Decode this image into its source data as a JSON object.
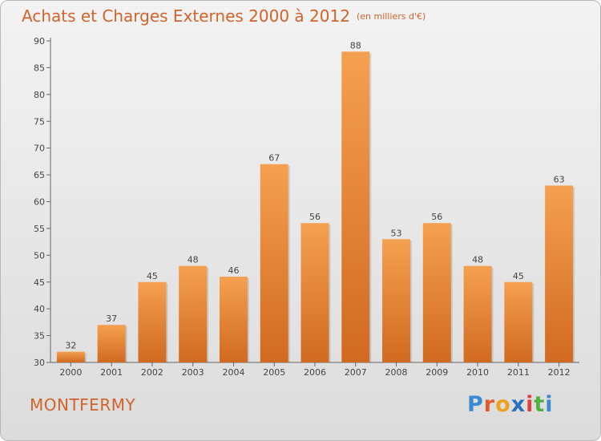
{
  "chart_data": {
    "type": "bar",
    "title": "Achats et Charges Externes 2000 à 2012",
    "subtitle": "(en milliers d'€)",
    "categories": [
      "2000",
      "2001",
      "2002",
      "2003",
      "2004",
      "2005",
      "2006",
      "2007",
      "2008",
      "2009",
      "2010",
      "2011",
      "2012"
    ],
    "values": [
      32,
      37,
      45,
      48,
      46,
      67,
      56,
      88,
      53,
      56,
      48,
      45,
      63
    ],
    "data_labels": [
      "32",
      "37",
      "45",
      "48",
      "46",
      "67",
      "56",
      "88",
      "53",
      "56",
      "48",
      "45",
      "63"
    ],
    "ylim": [
      30,
      90
    ],
    "yticks": [
      30,
      35,
      40,
      45,
      50,
      55,
      60,
      65,
      70,
      75,
      80,
      85,
      90
    ],
    "ytick_labels": [
      "30",
      "35",
      "40",
      "45",
      "50",
      "55",
      "60",
      "65",
      "70",
      "75",
      "80",
      "85",
      "90"
    ],
    "grid": false,
    "legend": "none",
    "bar_color_light": "#f5a050",
    "bar_color_dark": "#d06a20",
    "title_color": "#d2632a"
  },
  "footer": {
    "town": "MONTFERMY"
  },
  "logo": {
    "letters": [
      {
        "char": "P",
        "color": "#3a8ad0"
      },
      {
        "char": "r",
        "color": "#e05a2a"
      },
      {
        "char": "o",
        "color": "#f0a020"
      },
      {
        "char": "x",
        "color": "#2a70c0"
      },
      {
        "char": "i",
        "color": "#e04040"
      },
      {
        "char": "t",
        "color": "#50b040"
      },
      {
        "char": "i",
        "color": "#3a8ad0"
      }
    ]
  }
}
